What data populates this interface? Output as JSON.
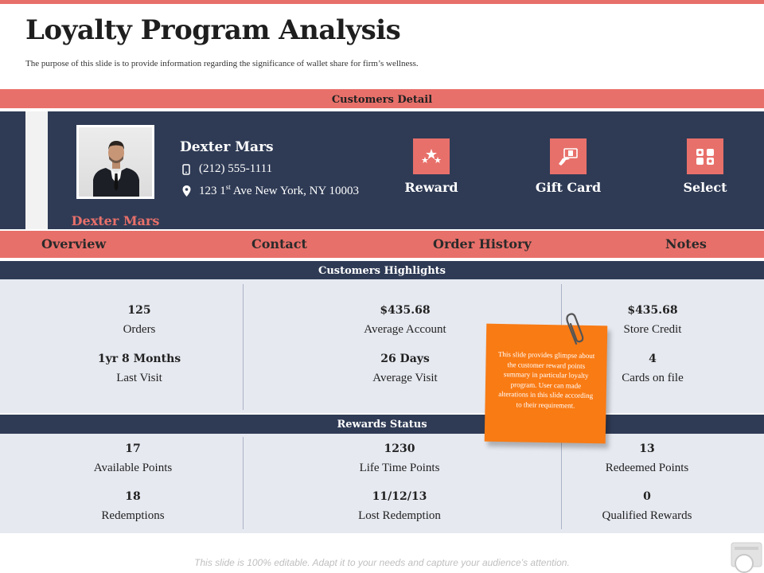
{
  "header": {
    "title": "Loyalty Program Analysis",
    "subtitle": "The purpose of this slide is to provide information regarding the significance of wallet share for firm’s wellness."
  },
  "customers_detail": {
    "section_label": "Customers Detail",
    "photo_caption": "Dexter Mars",
    "name": "Dexter Mars",
    "phone": "(212) 555-1111",
    "address_prefix": "123 1",
    "address_sup": "st",
    "address_suffix": " Ave New York, NY 10003",
    "actions": [
      {
        "label": "Reward",
        "icon": "stars-icon"
      },
      {
        "label": "Gift Card",
        "icon": "gift-card-icon"
      },
      {
        "label": "Select",
        "icon": "select-icon"
      }
    ]
  },
  "tabs": [
    "Overview",
    "Contact",
    "Order History",
    "Notes"
  ],
  "highlights": {
    "section_label": "Customers Highlights",
    "stats": [
      {
        "value": "125",
        "label": "Orders"
      },
      {
        "value": "$435.68",
        "label": "Average Account"
      },
      {
        "value": "$435.68",
        "label": "Store Credit"
      },
      {
        "value": "1yr 8 Months",
        "label": "Last Visit"
      },
      {
        "value": "26 Days",
        "label": "Average Visit"
      },
      {
        "value": "4",
        "label": "Cards on file"
      }
    ]
  },
  "rewards": {
    "section_label": "Rewards Status",
    "stats": [
      {
        "value": "17",
        "label": "Available Points"
      },
      {
        "value": "1230",
        "label": "Life Time Points"
      },
      {
        "value": "13",
        "label": "Redeemed Points"
      },
      {
        "value": "18",
        "label": "Redemptions"
      },
      {
        "value": "11/12/13",
        "label": "Lost Redemption"
      },
      {
        "value": "0",
        "label": "Qualified Rewards"
      }
    ]
  },
  "sticky_note": "This slide provides glimpse about the customer reward points summary in particular loyalty program. User can made alterations in this slide according to their requirement.",
  "footer": "This slide is 100% editable. Adapt it to your needs and capture your audience’s attention.",
  "colors": {
    "accent": "#e8706a",
    "navy": "#2f3b55",
    "panel": "#e6e9f0",
    "note": "#f97b14"
  }
}
